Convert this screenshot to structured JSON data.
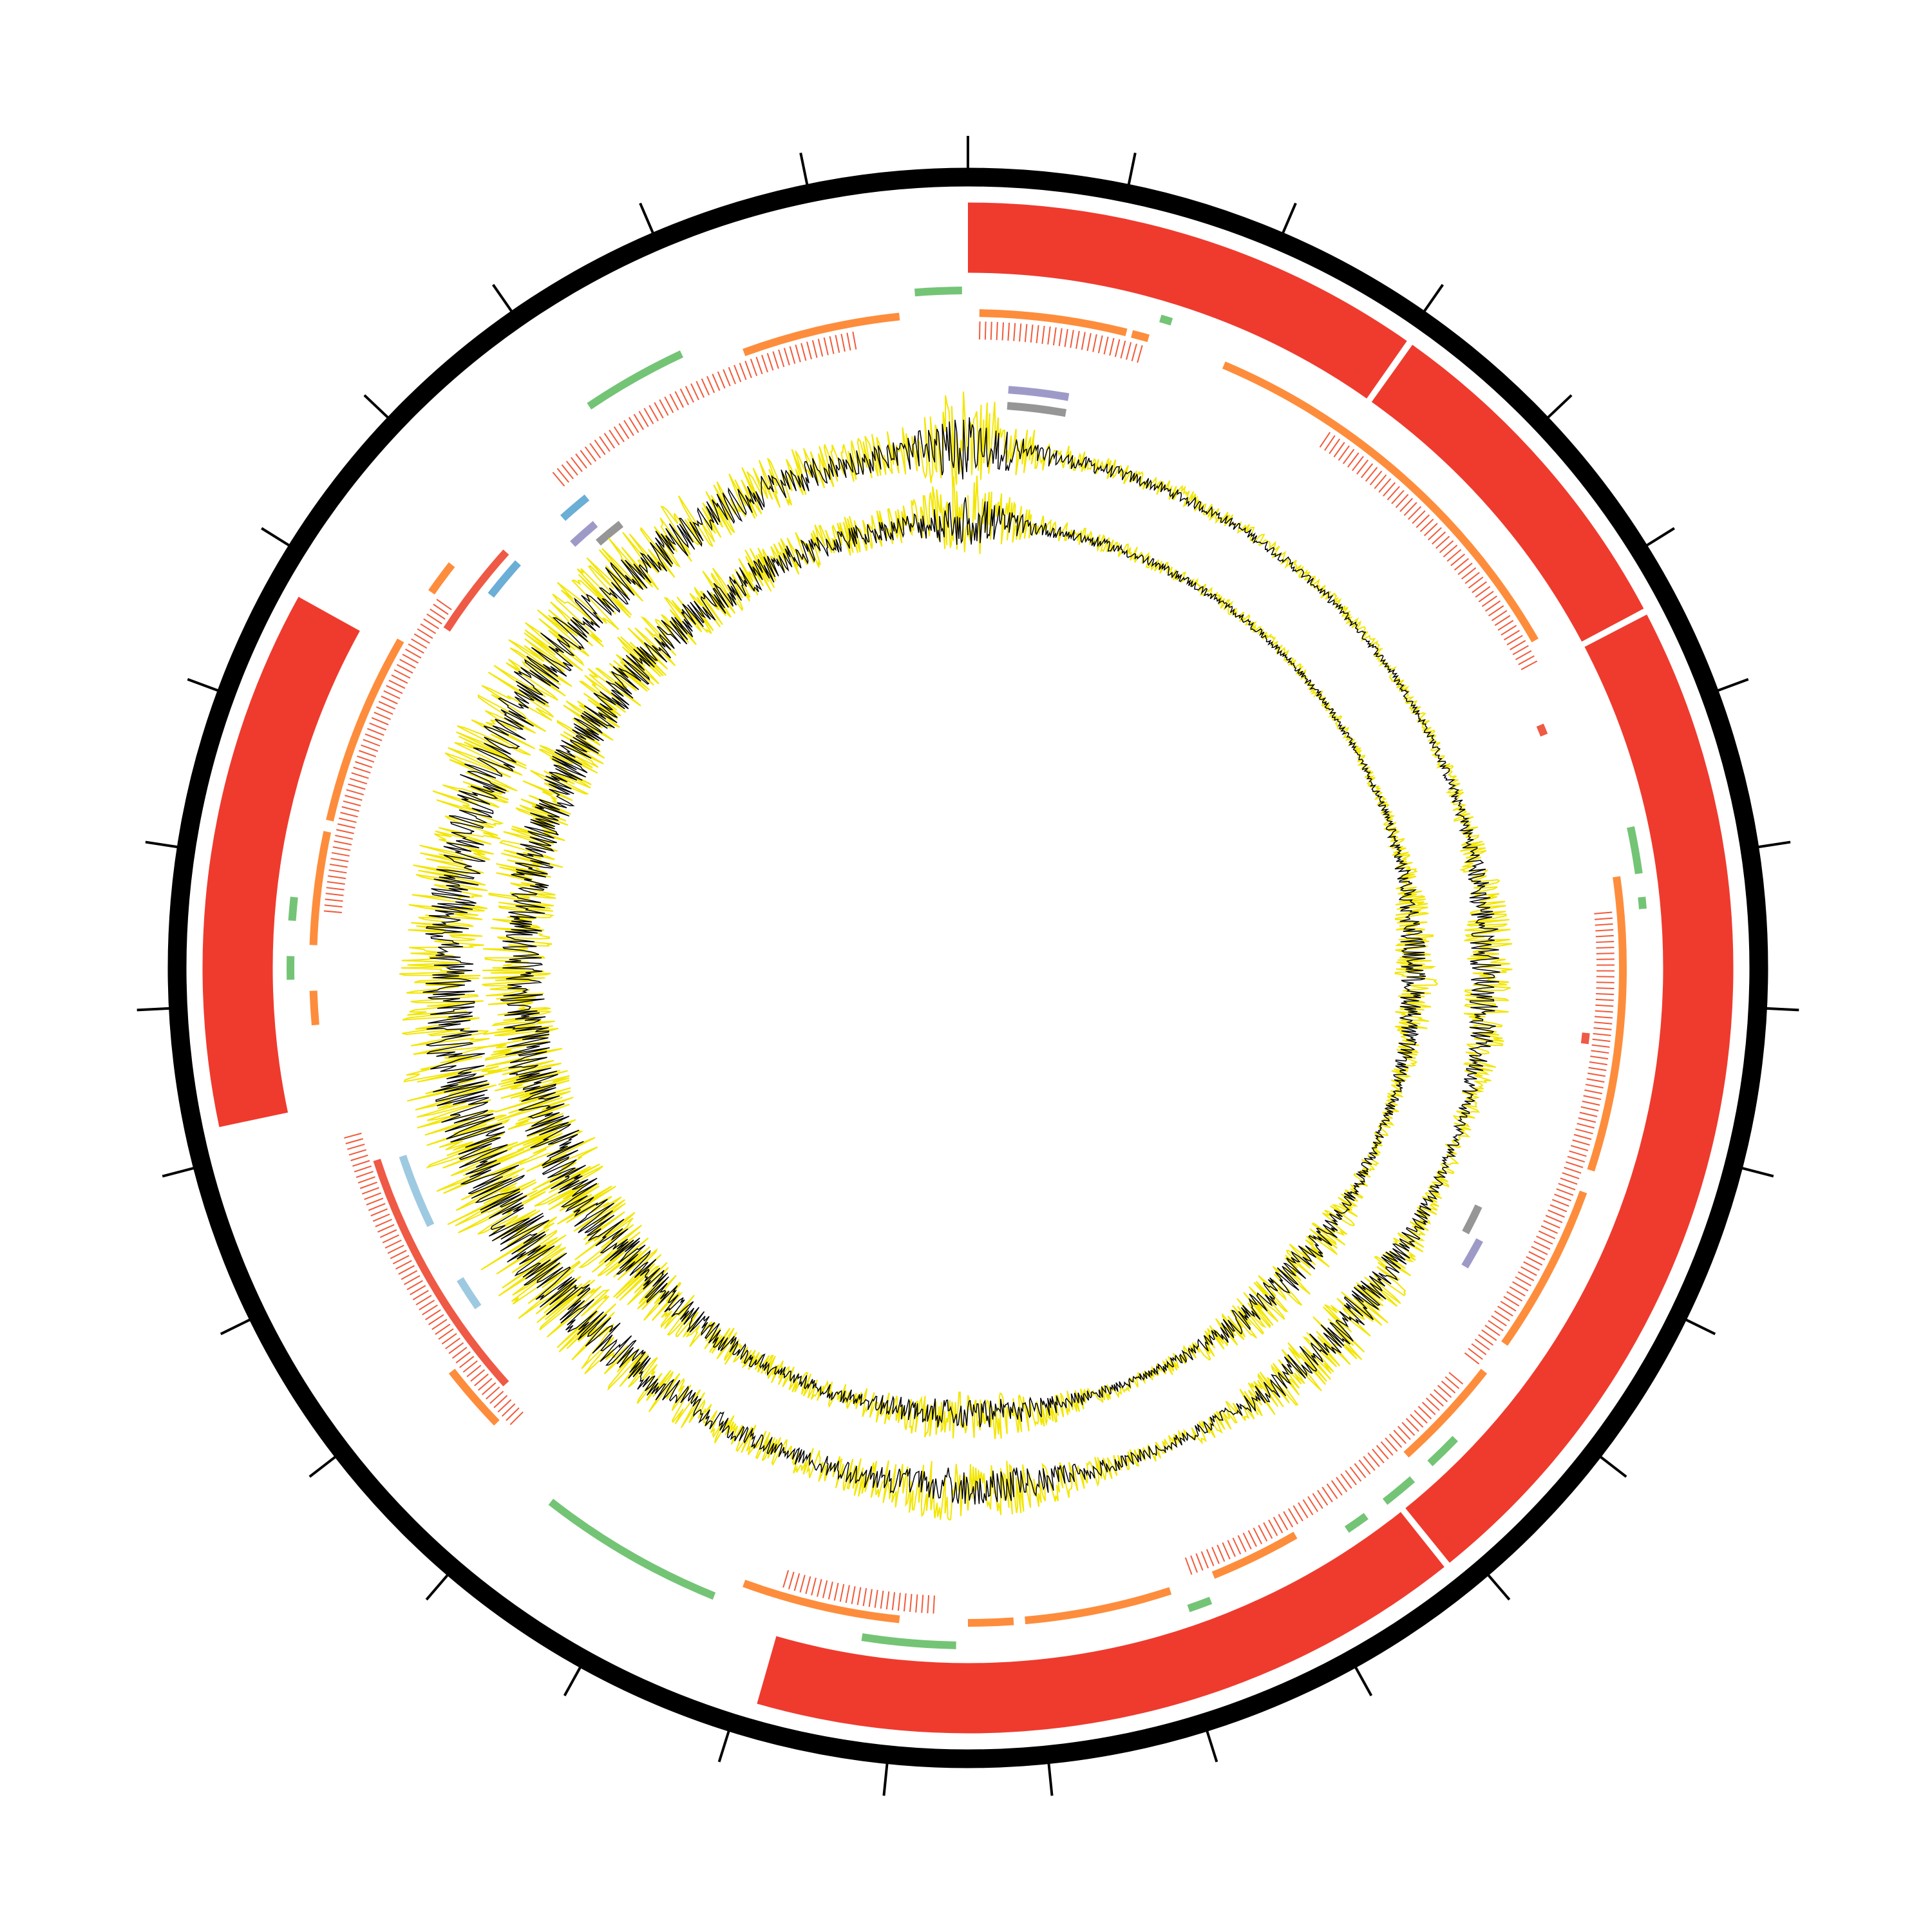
{
  "chart_data": {
    "type": "circos",
    "xlim": [
      0,
      360
    ],
    "xticks": [
      0,
      11.6,
      23.2,
      34.8,
      46.5,
      58.1,
      69.7,
      81.3,
      92.9,
      104.5,
      116.1,
      127.7,
      139.4,
      151,
      162.6,
      174.2,
      185.8,
      197.4,
      209,
      220.6,
      232.3,
      243.9,
      255.5,
      267.1,
      278.7,
      290.3,
      301.9,
      313.5,
      325.2,
      336.8,
      348.4
    ],
    "tracks": [
      {
        "color": "#ee3b2e",
        "arcs": [
          [
            0,
            35
          ],
          [
            35.5,
            62
          ],
          [
            62.5,
            141
          ],
          [
            141.5,
            196
          ],
          [
            258,
            299
          ]
        ]
      },
      {
        "color": "#74c476",
        "arcs": [
          [
            355.5,
            359.5
          ],
          [
            16.5,
            17.5
          ],
          [
            78,
            82
          ],
          [
            84,
            85
          ],
          [
            134,
            137
          ],
          [
            139,
            142
          ],
          [
            144,
            146
          ],
          [
            159,
            161
          ],
          [
            181,
            189
          ],
          [
            202,
            218
          ],
          [
            269,
            271
          ],
          [
            274,
            276
          ],
          [
            326,
            335
          ]
        ]
      },
      {
        "color": "#fd8d3c",
        "arcs": [
          [
            1,
            14
          ],
          [
            14.5,
            16
          ],
          [
            23,
            60
          ],
          [
            82,
            108
          ],
          [
            110,
            125
          ],
          [
            128,
            138
          ],
          [
            150,
            158
          ],
          [
            162,
            175
          ],
          [
            176,
            180
          ],
          [
            186,
            200
          ],
          [
            226,
            232
          ],
          [
            265,
            268
          ],
          [
            272,
            282
          ],
          [
            283,
            300
          ],
          [
            305,
            308
          ],
          [
            340,
            354
          ]
        ]
      },
      {
        "color": "#f15a3a",
        "arcs": [
          [
            1,
            16
          ],
          [
            34,
            62
          ],
          [
            85,
            128
          ],
          [
            130,
            160
          ],
          [
            183,
            197
          ],
          [
            225,
            255
          ],
          [
            275,
            305
          ],
          [
            320,
            350
          ]
        ]
      },
      {
        "color": "#ee5a45",
        "arcs": [
          [
            303,
            312
          ],
          [
            228,
            252
          ],
          [
            67,
            68
          ],
          [
            96,
            97
          ]
        ]
      },
      {
        "color": "#6baed6",
        "arcs": [
          [
            308,
            312
          ],
          [
            318,
            321
          ]
        ]
      },
      {
        "color": "#9ecae1",
        "arcs": [
          [
            244.4,
            251.6
          ],
          [
            235.3,
            238.5
          ]
        ]
      },
      {
        "color": "#9e9ac8",
        "arcs": [
          [
            4,
            10
          ],
          [
            317,
            320
          ],
          [
            118,
            121
          ]
        ]
      },
      {
        "color": "#969696",
        "arcs": [
          [
            4,
            10
          ],
          [
            319,
            322
          ],
          [
            115,
            118
          ]
        ]
      }
    ]
  }
}
